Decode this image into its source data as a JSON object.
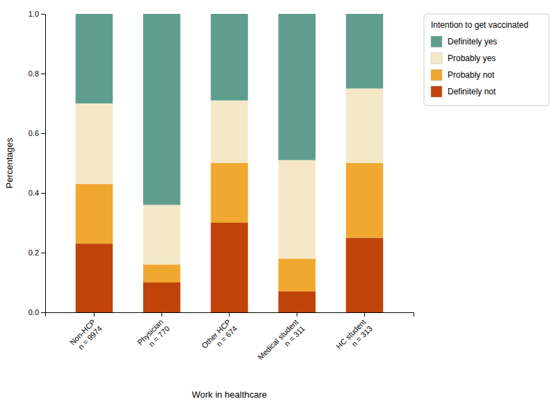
{
  "chart_data": {
    "type": "bar",
    "stacked": true,
    "categories": [
      "Non-HCP\nn = 9974",
      "Physician\nn = 770",
      "Other HCP\nn = 674",
      "Medical student\nn = 311",
      "HC student\nn = 313"
    ],
    "series": [
      {
        "name": "Definitely not",
        "color": "#c0440a",
        "values": [
          0.23,
          0.1,
          0.3,
          0.07,
          0.25
        ]
      },
      {
        "name": "Probably not",
        "color": "#f0a830",
        "values": [
          0.2,
          0.06,
          0.2,
          0.11,
          0.25
        ]
      },
      {
        "name": "Probably yes",
        "color": "#f5e8c8",
        "values": [
          0.27,
          0.2,
          0.21,
          0.33,
          0.25
        ]
      },
      {
        "name": "Definitely yes",
        "color": "#5f9e8f",
        "values": [
          0.3,
          0.64,
          0.29,
          0.49,
          0.25
        ]
      }
    ],
    "legend_title": "Intention to get vaccinated",
    "legend": "right",
    "xlabel": "Work in healthcare",
    "ylabel": "Percentages",
    "ylim": [
      0.0,
      1.0
    ],
    "yticks": [
      {
        "value": 0.0,
        "label": "0.0"
      },
      0.2,
      0.4,
      0.6,
      0.8,
      {
        "value": 1.0,
        "label": "1.0"
      }
    ],
    "grid": false
  }
}
